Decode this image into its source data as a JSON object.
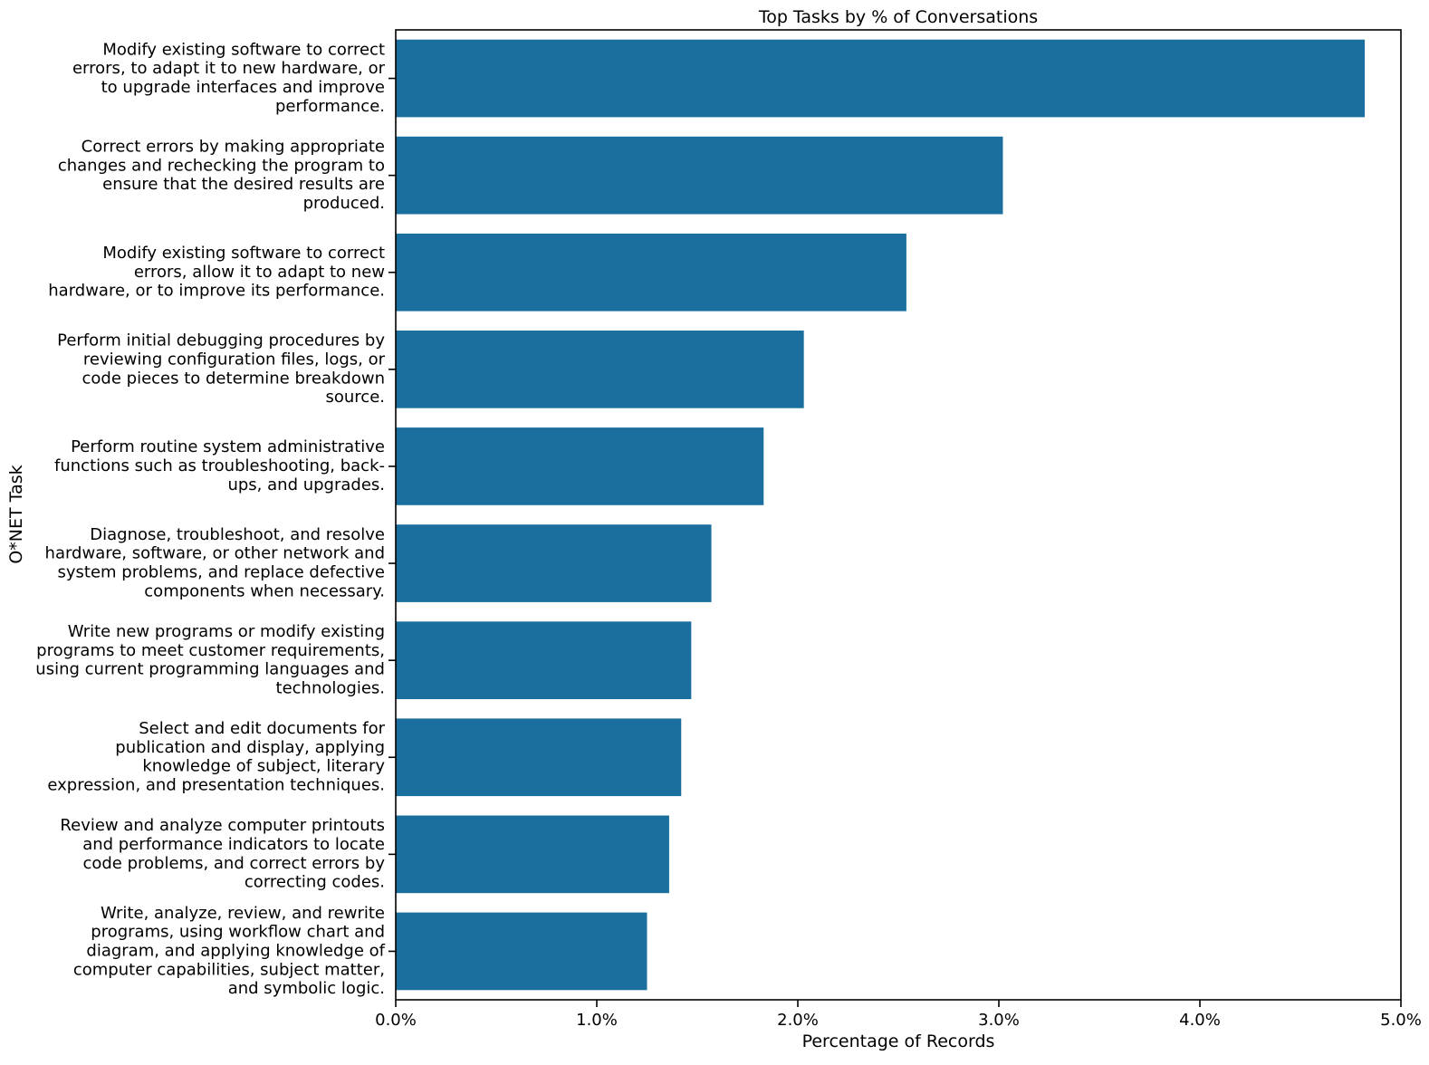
{
  "chart_data": {
    "type": "bar",
    "orientation": "horizontal",
    "title": "Top Tasks by % of Conversations",
    "xlabel": "Percentage of Records",
    "ylabel": "O*NET Task",
    "xlim": [
      0,
      5
    ],
    "x_ticks": [
      "0.0%",
      "1.0%",
      "2.0%",
      "3.0%",
      "4.0%",
      "5.0%"
    ],
    "grid": false,
    "bar_color": "#1a6f9e",
    "categories": [
      [
        "Modify existing software to correct",
        "errors, to adapt it to new hardware, or",
        "to upgrade interfaces and improve",
        "performance."
      ],
      [
        "Correct errors by making appropriate",
        "changes and rechecking the program to",
        "ensure that the desired results are",
        "produced."
      ],
      [
        "Modify existing software to correct",
        "errors, allow it to adapt to new",
        "hardware, or to improve its performance."
      ],
      [
        "Perform initial debugging procedures by",
        "reviewing configuration files, logs, or",
        "code pieces to determine breakdown",
        "source."
      ],
      [
        "Perform routine system administrative",
        "functions such as troubleshooting, back-",
        "ups, and upgrades."
      ],
      [
        "Diagnose, troubleshoot, and resolve",
        "hardware, software, or other network and",
        "system problems, and replace defective",
        "components when necessary."
      ],
      [
        "Write new programs or modify existing",
        "programs to meet customer requirements,",
        "using current programming languages and",
        "technologies."
      ],
      [
        "Select and edit documents for",
        "publication and display, applying",
        "knowledge of subject, literary",
        "expression, and presentation techniques."
      ],
      [
        "Review and analyze computer printouts",
        "and performance indicators to locate",
        "code problems, and correct errors by",
        "correcting codes."
      ],
      [
        "Write, analyze, review, and rewrite",
        "programs, using workflow chart and",
        "diagram, and applying knowledge of",
        "computer capabilities, subject matter,",
        "and symbolic logic."
      ]
    ],
    "values": [
      4.82,
      3.02,
      2.54,
      2.03,
      1.83,
      1.57,
      1.47,
      1.42,
      1.36,
      1.25
    ]
  }
}
